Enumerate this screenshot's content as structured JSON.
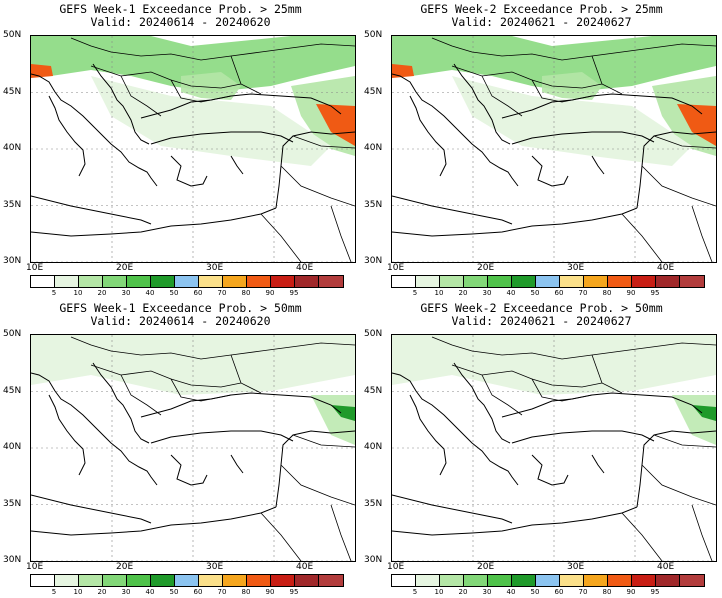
{
  "panels": [
    {
      "title": "GEFS Week-1 Exceedance Prob. > 25mm",
      "valid": "Valid: 20240614 - 20240620"
    },
    {
      "title": "GEFS Week-2 Exceedance Prob. > 25mm",
      "valid": "Valid: 20240621 - 20240627"
    },
    {
      "title": "GEFS Week-1 Exceedance Prob. > 50mm",
      "valid": "Valid: 20240614 - 20240620"
    },
    {
      "title": "GEFS Week-2 Exceedance Prob. > 50mm",
      "valid": "Valid: 20240621 - 20240627"
    }
  ],
  "lat_labels": [
    "50N",
    "45N",
    "40N",
    "35N",
    "30N"
  ],
  "lon_labels": [
    "10E",
    "20E",
    "30E",
    "40E"
  ],
  "legend": {
    "labels": [
      "5",
      "10",
      "20",
      "30",
      "40",
      "50",
      "60",
      "70",
      "80",
      "90",
      "95"
    ],
    "colors": [
      "#ffffff",
      "#e6f5e1",
      "#b4e6a6",
      "#82d778",
      "#4fc24a",
      "#1f9a2a",
      "#8cc4f0",
      "#fbe08a",
      "#f5a61e",
      "#f05a14",
      "#c81e14",
      "#a0282a",
      "#b23c3c"
    ]
  }
}
